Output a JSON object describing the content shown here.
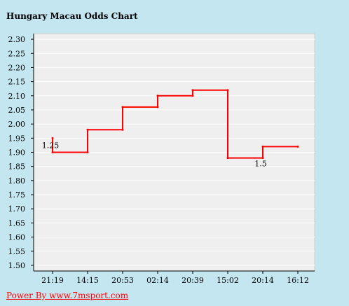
{
  "chart_data": {
    "type": "line",
    "title": "Hungary Macau Odds Chart",
    "xlabel": "",
    "ylabel": "",
    "step": true,
    "categories": [
      "21:19",
      "14:15",
      "20:53",
      "02:14",
      "20:39",
      "15:02",
      "20:14",
      "16:12"
    ],
    "ylim": [
      1.48,
      2.32
    ],
    "yticks": [
      1.5,
      1.55,
      1.6,
      1.65,
      1.7,
      1.75,
      1.8,
      1.85,
      1.9,
      1.95,
      2.0,
      2.05,
      2.1,
      2.15,
      2.2,
      2.25,
      2.3
    ],
    "series": [
      {
        "color": "#ff0000",
        "points": [
          {
            "x": 0,
            "y": 1.95
          },
          {
            "x": 0,
            "y": 1.9
          },
          {
            "x": 1,
            "y": 1.9
          },
          {
            "x": 1,
            "y": 1.98
          },
          {
            "x": 2,
            "y": 1.98
          },
          {
            "x": 2,
            "y": 2.06
          },
          {
            "x": 3,
            "y": 2.06
          },
          {
            "x": 3,
            "y": 2.1
          },
          {
            "x": 4,
            "y": 2.1
          },
          {
            "x": 4,
            "y": 2.12
          },
          {
            "x": 5,
            "y": 2.12
          },
          {
            "x": 5,
            "y": 1.88
          },
          {
            "x": 6,
            "y": 1.88
          },
          {
            "x": 6,
            "y": 1.92
          },
          {
            "x": 7,
            "y": 1.92
          }
        ]
      }
    ],
    "annotations": [
      {
        "text": "1.25",
        "x": 0,
        "y": 1.9
      },
      {
        "text": "1.5",
        "x": 6,
        "y": 1.88
      }
    ],
    "grid": true,
    "plot_background": "#efefef",
    "grid_color": "#ffffff"
  },
  "footer": {
    "link_text": "Power By www.7msport.com",
    "color": "#ff0000"
  }
}
